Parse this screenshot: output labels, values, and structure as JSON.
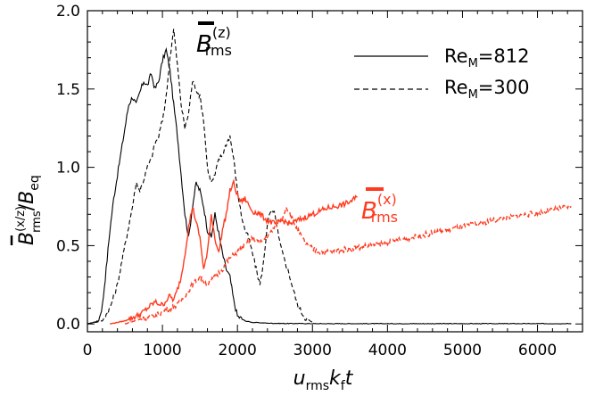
{
  "chart_data": {
    "type": "line",
    "title": "",
    "xlabel": {
      "main": "u",
      "sub1": "rms",
      "mid": "k",
      "sub2": "f",
      "end": "t"
    },
    "ylabel": {
      "main": "B",
      "sup": "(x/z)",
      "sub": "rms",
      "slash": "/",
      "denom": "B",
      "denom_sub": "eq"
    },
    "xlim": [
      0,
      6600
    ],
    "ylim": [
      -0.05,
      2.0
    ],
    "xticks": [
      0,
      1000,
      2000,
      3000,
      4000,
      5000,
      6000
    ],
    "yticks": [
      0.0,
      0.5,
      1.0,
      1.5,
      2.0
    ],
    "xtick_labels": [
      "0",
      "1000",
      "2000",
      "3000",
      "4000",
      "5000",
      "6000"
    ],
    "ytick_labels": [
      "0.0",
      "0.5",
      "1.0",
      "1.5",
      "2.0"
    ],
    "grid": false,
    "legend": {
      "placement": "top-right",
      "entries": [
        {
          "label_main": "Re",
          "label_sub": "M",
          "label_value": "=812",
          "dash": "solid"
        },
        {
          "label_main": "Re",
          "label_sub": "M",
          "label_value": "=300",
          "dash": "dashed"
        }
      ]
    },
    "annotations": [
      {
        "id": "bz",
        "main": "B",
        "sup": "(z)",
        "sub": "rms",
        "color": "#000000",
        "near": [
          1350,
          1.95
        ]
      },
      {
        "id": "bx",
        "main": "B",
        "sup": "(x)",
        "sub": "rms",
        "color": "#ff3a1f",
        "near": [
          3800,
          0.7
        ]
      }
    ],
    "series": [
      {
        "component": "z",
        "Re_M": 812,
        "dash": "solid",
        "color": "#000000",
        "x": [
          0,
          150,
          200,
          250,
          300,
          350,
          400,
          450,
          500,
          550,
          600,
          650,
          700,
          750,
          800,
          850,
          900,
          950,
          1000,
          1050,
          1100,
          1150,
          1200,
          1250,
          1300,
          1350,
          1400,
          1450,
          1500,
          1550,
          1600,
          1650,
          1700,
          1750,
          1800,
          1850,
          1900,
          1950,
          2000,
          2100,
          2200,
          2400,
          2600,
          2800,
          3000,
          3500,
          4000,
          4500,
          5000,
          5500,
          6000,
          6450
        ],
        "y": [
          0.0,
          0.02,
          0.12,
          0.35,
          0.6,
          0.8,
          0.95,
          1.1,
          1.25,
          1.4,
          1.45,
          1.4,
          1.48,
          1.55,
          1.52,
          1.6,
          1.5,
          1.55,
          1.68,
          1.75,
          1.62,
          1.4,
          1.2,
          0.95,
          0.7,
          0.55,
          0.75,
          0.9,
          0.85,
          0.75,
          0.6,
          0.55,
          0.7,
          0.58,
          0.45,
          0.35,
          0.3,
          0.15,
          0.05,
          0.02,
          0.01,
          0.005,
          0.003,
          0.003,
          0.002,
          0.002,
          0.002,
          0.002,
          0.002,
          0.002,
          0.002,
          0.002
        ]
      },
      {
        "component": "z",
        "Re_M": 300,
        "dash": "dashed",
        "color": "#000000",
        "x": [
          0,
          200,
          300,
          400,
          500,
          600,
          650,
          700,
          750,
          800,
          850,
          900,
          950,
          1000,
          1050,
          1100,
          1150,
          1200,
          1250,
          1300,
          1350,
          1400,
          1450,
          1500,
          1550,
          1600,
          1650,
          1700,
          1750,
          1800,
          1850,
          1900,
          1950,
          2000,
          2050,
          2100,
          2150,
          2200,
          2250,
          2300,
          2350,
          2400,
          2450,
          2500,
          2550,
          2600,
          2700,
          2800,
          2900,
          3000
        ],
        "y": [
          0.0,
          0.02,
          0.1,
          0.25,
          0.5,
          0.75,
          0.9,
          0.85,
          0.92,
          1.0,
          1.05,
          1.15,
          1.2,
          1.3,
          1.45,
          1.7,
          1.88,
          1.65,
          1.4,
          1.25,
          1.35,
          1.55,
          1.5,
          1.45,
          1.3,
          1.0,
          0.9,
          0.95,
          1.05,
          1.08,
          1.15,
          1.2,
          1.05,
          0.85,
          0.7,
          0.6,
          0.55,
          0.45,
          0.35,
          0.25,
          0.4,
          0.65,
          0.72,
          0.7,
          0.55,
          0.45,
          0.3,
          0.12,
          0.04,
          0.01
        ]
      },
      {
        "component": "x",
        "Re_M": 812,
        "dash": "solid",
        "color": "#ff3a1f",
        "x": [
          300,
          500,
          700,
          800,
          900,
          1000,
          1100,
          1150,
          1200,
          1250,
          1300,
          1350,
          1400,
          1450,
          1500,
          1550,
          1600,
          1650,
          1700,
          1750,
          1800,
          1850,
          1900,
          1950,
          2000,
          2050,
          2100,
          2200,
          2300,
          2400,
          2500,
          2600,
          2700,
          2800,
          2900,
          3000,
          3100,
          3200,
          3300,
          3400,
          3500,
          3600
        ],
        "y": [
          0.0,
          0.02,
          0.06,
          0.1,
          0.14,
          0.12,
          0.18,
          0.15,
          0.22,
          0.3,
          0.45,
          0.62,
          0.75,
          0.65,
          0.55,
          0.35,
          0.45,
          0.7,
          0.55,
          0.45,
          0.6,
          0.7,
          0.85,
          0.9,
          0.82,
          0.78,
          0.8,
          0.72,
          0.7,
          0.66,
          0.64,
          0.66,
          0.64,
          0.66,
          0.68,
          0.7,
          0.72,
          0.74,
          0.75,
          0.76,
          0.78,
          0.81
        ]
      },
      {
        "component": "x",
        "Re_M": 300,
        "dash": "dashed",
        "color": "#ff3a1f",
        "x": [
          500,
          700,
          900,
          1000,
          1100,
          1200,
          1300,
          1400,
          1500,
          1600,
          1700,
          1800,
          1900,
          2000,
          2100,
          2200,
          2300,
          2400,
          2500,
          2600,
          2650,
          2700,
          2800,
          2900,
          3000,
          3100,
          3200,
          3500,
          4000,
          4500,
          5000,
          5500,
          6000,
          6450
        ],
        "y": [
          0.0,
          0.03,
          0.05,
          0.08,
          0.1,
          0.12,
          0.18,
          0.25,
          0.3,
          0.25,
          0.3,
          0.35,
          0.42,
          0.46,
          0.5,
          0.55,
          0.52,
          0.56,
          0.62,
          0.68,
          0.75,
          0.7,
          0.6,
          0.52,
          0.48,
          0.46,
          0.46,
          0.48,
          0.52,
          0.57,
          0.62,
          0.67,
          0.71,
          0.75
        ]
      }
    ]
  },
  "colors": {
    "axes": "#000000",
    "accent": "#ff3a1f"
  }
}
